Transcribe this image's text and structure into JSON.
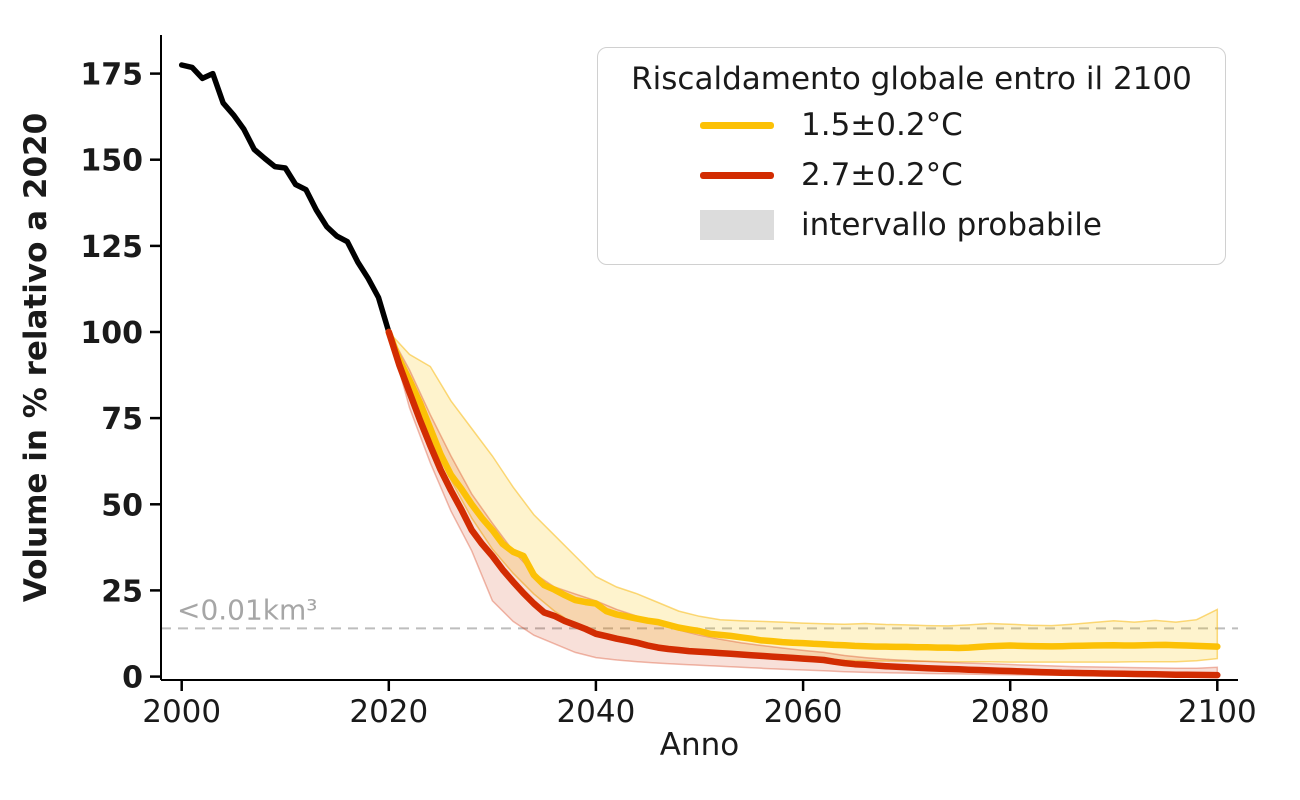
{
  "figure": {
    "background": "#ffffff",
    "text_color": "#1a1a1a"
  },
  "chart_data": {
    "type": "line",
    "title": "",
    "xlabel": "Anno",
    "ylabel": "Volume in % relativo a 2020",
    "xlim": [
      1998,
      2102
    ],
    "ylim": [
      -1,
      186.2
    ],
    "x_ticks": [
      2000,
      2020,
      2040,
      2060,
      2080,
      2100
    ],
    "y_ticks": [
      0,
      25,
      50,
      75,
      100,
      125,
      150,
      175
    ],
    "grid": false,
    "legend": {
      "title": "Riscaldamento globale entro il 2100",
      "position": "upper right",
      "entries": [
        {
          "label": "1.5±0.2°C",
          "swatch": "line",
          "color": "#FCC106"
        },
        {
          "label": "2.7±0.2°C",
          "swatch": "line",
          "color": "#D22C02"
        },
        {
          "label": "intervallo probabile",
          "swatch": "patch",
          "color": "#dcdcdc"
        }
      ]
    },
    "threshold": {
      "value": 14,
      "label": "<0.01km³",
      "line_color": "#bdbdbd",
      "label_color": "#a6a6a6"
    },
    "series": [
      {
        "id": "storico",
        "color": "#000000",
        "line_width": 5.5,
        "x": [
          2000,
          2001,
          2002,
          2003,
          2004,
          2005,
          2006,
          2007,
          2008,
          2009,
          2010,
          2011,
          2012,
          2013,
          2014,
          2015,
          2016,
          2017,
          2018,
          2019,
          2020
        ],
        "y": [
          177.5,
          176.8,
          173.6,
          175.0,
          166.5,
          163.0,
          158.9,
          153.0,
          150.4,
          148.0,
          147.6,
          142.8,
          141.3,
          135.4,
          130.6,
          127.8,
          126.2,
          120.3,
          115.6,
          110.0,
          100.0
        ]
      },
      {
        "id": "scenario-1-5C",
        "label": "1.5±0.2°C",
        "color": "#FCC106",
        "line_width": 6.5,
        "band_fill": "rgba(252,193,6,0.20)",
        "band_edge": "rgba(247,185,20,0.55)",
        "x": [
          2020,
          2021,
          2022,
          2023,
          2024,
          2025,
          2026,
          2027,
          2028,
          2029,
          2030,
          2031,
          2032,
          2033,
          2034,
          2035,
          2036,
          2037,
          2038,
          2039,
          2040,
          2041,
          2042,
          2043,
          2044,
          2045,
          2046,
          2047,
          2048,
          2049,
          2050,
          2051,
          2052,
          2053,
          2054,
          2055,
          2056,
          2057,
          2058,
          2059,
          2060,
          2061,
          2062,
          2063,
          2064,
          2065,
          2066,
          2067,
          2068,
          2069,
          2070,
          2071,
          2072,
          2073,
          2074,
          2075,
          2076,
          2077,
          2078,
          2079,
          2080,
          2081,
          2082,
          2083,
          2084,
          2085,
          2086,
          2087,
          2088,
          2089,
          2090,
          2091,
          2092,
          2093,
          2094,
          2095,
          2096,
          2097,
          2098,
          2099,
          2100
        ],
        "y": [
          100,
          92,
          86,
          79.5,
          72,
          64.5,
          58.5,
          54.5,
          50,
          46,
          42.5,
          38.5,
          36.2,
          35.0,
          29.5,
          26.5,
          25.2,
          23.6,
          22.2,
          21.6,
          21.2,
          19.0,
          18.0,
          17.4,
          16.8,
          16.2,
          15.8,
          15.0,
          14.2,
          13.7,
          13.2,
          12.4,
          12.1,
          11.8,
          11.4,
          11.0,
          10.5,
          10.3,
          10.0,
          9.8,
          9.7,
          9.5,
          9.4,
          9.2,
          9.1,
          8.9,
          8.8,
          8.7,
          8.7,
          8.6,
          8.6,
          8.5,
          8.5,
          8.4,
          8.4,
          8.3,
          8.4,
          8.6,
          8.8,
          8.9,
          9.0,
          8.9,
          8.85,
          8.8,
          8.75,
          8.8,
          8.9,
          8.95,
          9.0,
          9.05,
          9.1,
          9.0,
          9.0,
          9.1,
          9.15,
          9.2,
          9.1,
          9.0,
          8.9,
          8.8,
          8.7
        ],
        "band": {
          "x": [
            2020,
            2022,
            2024,
            2026,
            2028,
            2030,
            2032,
            2034,
            2036,
            2038,
            2040,
            2042,
            2044,
            2046,
            2048,
            2050,
            2052,
            2054,
            2056,
            2058,
            2060,
            2062,
            2064,
            2066,
            2068,
            2070,
            2072,
            2074,
            2076,
            2078,
            2080,
            2082,
            2084,
            2086,
            2088,
            2090,
            2092,
            2094,
            2096,
            2098,
            2100
          ],
          "upper": [
            100,
            93.5,
            90,
            80,
            72,
            64,
            55,
            47,
            41,
            35,
            29,
            26,
            24,
            21.5,
            19,
            17.5,
            16.5,
            16.2,
            16,
            15.8,
            15.5,
            15.3,
            15.2,
            15.4,
            15.1,
            15,
            14.8,
            14.7,
            15,
            15.4,
            15.2,
            14.9,
            14.8,
            15.2,
            15.7,
            16.2,
            15.8,
            16.3,
            15.8,
            16.5,
            19.5
          ],
          "lower": [
            100,
            84,
            70,
            57,
            46,
            37,
            30,
            24,
            19,
            15,
            12,
            10.5,
            9.5,
            8.5,
            7.5,
            7,
            6.5,
            6,
            5.5,
            5.2,
            4.9,
            4.8,
            4.7,
            4.6,
            4.5,
            4.4,
            4.4,
            4.3,
            4.3,
            4.3,
            4.2,
            4.2,
            4.2,
            4.2,
            4.2,
            4.2,
            4.3,
            4.3,
            4.3,
            4.6,
            5.2
          ]
        }
      },
      {
        "id": "scenario-2-7C",
        "label": "2.7±0.2°C",
        "color": "#D22C02",
        "line_width": 6.5,
        "band_fill": "rgba(210,44,2,0.15)",
        "band_edge": "rgba(210,44,2,0.32)",
        "x": [
          2020,
          2021,
          2022,
          2023,
          2024,
          2025,
          2026,
          2027,
          2028,
          2029,
          2030,
          2031,
          2032,
          2033,
          2034,
          2035,
          2036,
          2037,
          2038,
          2039,
          2040,
          2041,
          2042,
          2043,
          2044,
          2045,
          2046,
          2047,
          2048,
          2049,
          2050,
          2051,
          2052,
          2053,
          2054,
          2055,
          2056,
          2057,
          2058,
          2059,
          2060,
          2061,
          2062,
          2063,
          2064,
          2065,
          2066,
          2067,
          2068,
          2069,
          2070,
          2071,
          2072,
          2073,
          2074,
          2075,
          2076,
          2077,
          2078,
          2079,
          2080,
          2081,
          2082,
          2083,
          2084,
          2085,
          2086,
          2087,
          2088,
          2089,
          2090,
          2091,
          2092,
          2093,
          2094,
          2095,
          2096,
          2097,
          2098,
          2099,
          2100
        ],
        "y": [
          100,
          90.5,
          82.5,
          74.5,
          67,
          60,
          54,
          48.5,
          42.5,
          38.5,
          35,
          31,
          27.5,
          24.2,
          21.2,
          18.6,
          17.6,
          16.1,
          15.0,
          13.8,
          12.4,
          11.7,
          11.0,
          10.4,
          9.8,
          9.0,
          8.4,
          8.0,
          7.7,
          7.4,
          7.2,
          7.0,
          6.8,
          6.6,
          6.4,
          6.2,
          6.0,
          5.8,
          5.6,
          5.4,
          5.2,
          5.0,
          4.8,
          4.3,
          3.9,
          3.6,
          3.4,
          3.2,
          3.0,
          2.85,
          2.7,
          2.55,
          2.4,
          2.3,
          2.2,
          2.1,
          2.0,
          1.9,
          1.8,
          1.7,
          1.6,
          1.5,
          1.4,
          1.3,
          1.2,
          1.1,
          1.05,
          1.0,
          0.95,
          0.9,
          0.85,
          0.8,
          0.75,
          0.7,
          0.65,
          0.6,
          0.55,
          0.5,
          0.48,
          0.45,
          0.42
        ],
        "band": {
          "x": [
            2020,
            2022,
            2024,
            2026,
            2028,
            2030,
            2032,
            2034,
            2036,
            2038,
            2040,
            2042,
            2044,
            2046,
            2048,
            2050,
            2052,
            2054,
            2056,
            2058,
            2060,
            2062,
            2064,
            2066,
            2068,
            2070,
            2072,
            2074,
            2076,
            2078,
            2080,
            2082,
            2084,
            2086,
            2088,
            2090,
            2092,
            2094,
            2096,
            2098,
            2100
          ],
          "upper": [
            100,
            89,
            76,
            64,
            53,
            44.5,
            36.5,
            30,
            26,
            24,
            22,
            19.5,
            17.5,
            15.5,
            13.5,
            12,
            10.8,
            9.8,
            9,
            8.3,
            7.6,
            7,
            6.1,
            5.5,
            5,
            4.7,
            4.4,
            4.1,
            3.9,
            3.7,
            3.5,
            3.3,
            3.1,
            2.9,
            2.8,
            2.7,
            2.6,
            2.5,
            2.4,
            2.4,
            2.7
          ],
          "lower": [
            100,
            78,
            62,
            48,
            36.5,
            22,
            16,
            12,
            9.5,
            7,
            5.5,
            4.8,
            4.3,
            3.9,
            3.6,
            3.3,
            3,
            2.7,
            2.4,
            2.1,
            1.9,
            1.7,
            1.4,
            1.2,
            1.1,
            1,
            0.9,
            0.8,
            0.7,
            0.6,
            0.5,
            0.45,
            0.4,
            0.35,
            0.3,
            0.25,
            0.2,
            0.18,
            0.15,
            0.12,
            0.15
          ]
        }
      }
    ]
  }
}
